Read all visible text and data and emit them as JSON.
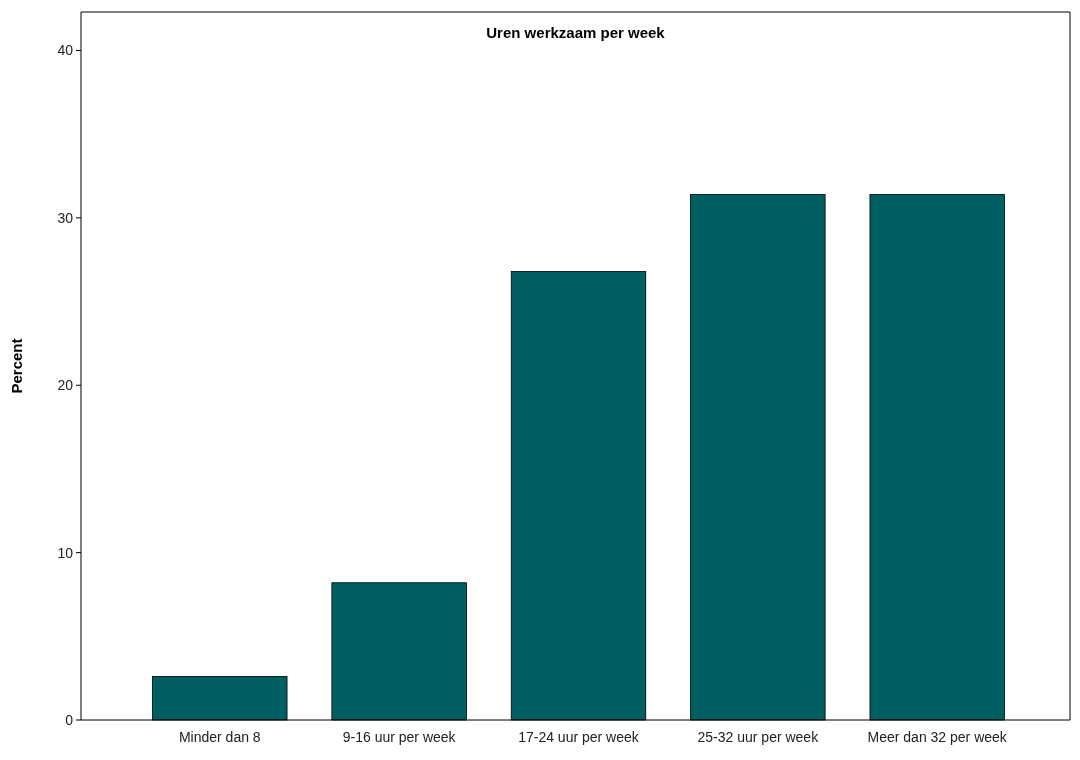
{
  "chart_data": {
    "type": "bar",
    "title": "Uren werkzaam per week",
    "ylabel": "Percent",
    "categories": [
      "Minder dan 8",
      "9-16 uur per week",
      "17-24 uur per week",
      "25-32 uur per week",
      "Meer dan 32 per week"
    ],
    "values": [
      2.6,
      8.2,
      26.8,
      31.4,
      31.4
    ],
    "color": "#005f63",
    "ylim": [
      0,
      42.3
    ],
    "yticks": [
      0,
      10,
      20,
      30,
      40
    ],
    "grid": false
  }
}
